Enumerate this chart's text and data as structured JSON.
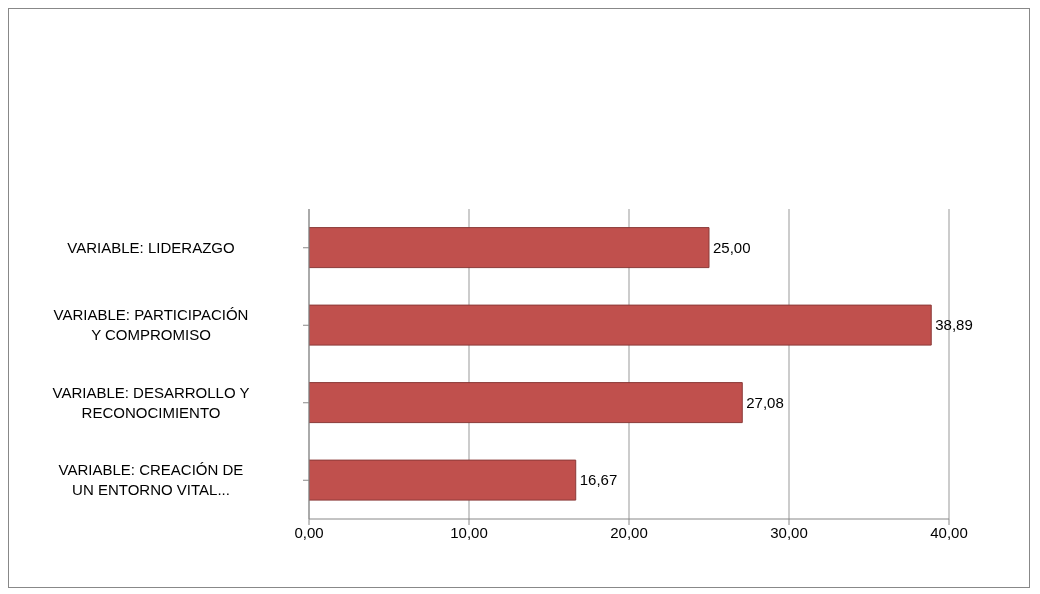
{
  "chart_data": {
    "type": "bar",
    "orientation": "horizontal",
    "categories": [
      "VARIABLE: LIDERAZGO",
      "VARIABLE: PARTICIPACIÓN\nY COMPROMISO",
      "VARIABLE: DESARROLLO Y\nRECONOCIMIENTO",
      "VARIABLE: CREACIÓN DE\nUN ENTORNO VITAL..."
    ],
    "values": [
      25.0,
      38.89,
      27.08,
      16.67
    ],
    "value_labels": [
      "25,00",
      "38,89",
      "27,08",
      "16,67"
    ],
    "color": "#c0504d",
    "xlim": [
      0,
      40
    ],
    "xticks": [
      {
        "value": 0,
        "label": "0,00"
      },
      {
        "value": 10,
        "label": "10,00"
      },
      {
        "value": 20,
        "label": "20,00"
      },
      {
        "value": 30,
        "label": "30,00"
      },
      {
        "value": 40,
        "label": "40,00"
      }
    ],
    "grid": "x"
  }
}
